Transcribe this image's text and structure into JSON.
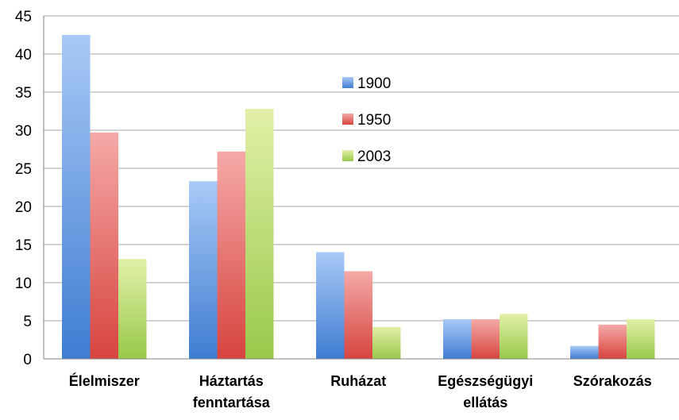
{
  "chart_data": {
    "type": "bar",
    "categories": [
      [
        "Élelmiszer"
      ],
      [
        "Háztartás",
        "fenntartása"
      ],
      [
        "Ruházat"
      ],
      [
        "Egészségügyi",
        "ellátás"
      ],
      [
        "Szórakozás"
      ]
    ],
    "series": [
      {
        "name": "1900",
        "values": [
          42.5,
          23.3,
          14.0,
          5.2,
          1.7
        ],
        "color_top": "#a9c9f6",
        "color_bottom": "#3f7dd2"
      },
      {
        "name": "1950",
        "values": [
          29.7,
          27.2,
          11.5,
          5.2,
          4.5
        ],
        "color_top": "#f5a9a7",
        "color_bottom": "#d7443f"
      },
      {
        "name": "2003",
        "values": [
          13.1,
          32.8,
          4.2,
          5.9,
          5.2
        ],
        "color_top": "#e2f0a8",
        "color_bottom": "#98c94a"
      }
    ],
    "ylim": [
      0,
      45
    ],
    "yticks": [
      0,
      5,
      10,
      15,
      20,
      25,
      30,
      35,
      40,
      45
    ],
    "grid": true,
    "legend_position": "center-right"
  }
}
